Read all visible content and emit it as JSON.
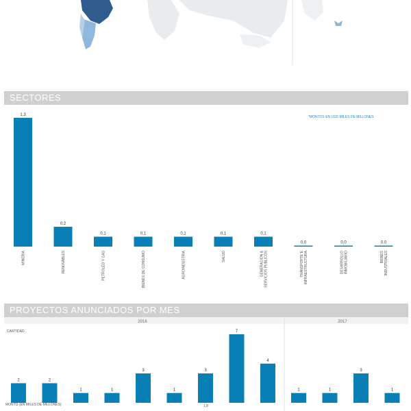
{
  "colors": {
    "bar": "#0a7fb5",
    "header_bg": "#d0d0d0",
    "map_dark": "#2f5c8c",
    "map_light": "#8fb8dc",
    "map_land": "#e8ecef",
    "note": "#1a8cc8"
  },
  "sectores": {
    "header": "SECTORES",
    "note": "*MONTOS EN USD MILES DE MILLONES"
  },
  "proyectos": {
    "header": "PROYECTOS ANUNCIADOS POR MES",
    "cantidad_label": "CANTIDAD",
    "monto_label": "MONTO (EN MILES DE MILLONES)",
    "bottom_value": "1,8"
  },
  "chart_data": [
    {
      "type": "bar",
      "title": "SECTORES",
      "categories": [
        "MINERIA",
        "RENOVABLES",
        "PETROLEO Y GAS",
        "BIENES DE CONSUMO",
        "AGROINDUSTRIA",
        "SALUD",
        "GENERACION & SERVICIOS PUBLICOS",
        "TRANSPORTE E INFRAESTRUCTURA",
        "DESARROLLO INMOBILIARIO",
        "BIENES INDUSTRIALES"
      ],
      "values": [
        1.3,
        0.2,
        0.1,
        0.1,
        0.1,
        0.1,
        0.1,
        0.0,
        0.0,
        0.0
      ],
      "value_labels": [
        "1,3",
        "0,2",
        "0,1",
        "0,1",
        "0,1",
        "0,1",
        "0,1",
        "0,0",
        "0,0",
        "0,0"
      ],
      "ylim": [
        0,
        1.3
      ]
    },
    {
      "type": "bar",
      "title": "PROYECTOS ANUNCIADOS POR MES",
      "ylabel": "CANTIDAD",
      "groups": [
        {
          "year": "2016",
          "values": [
            2,
            2,
            1,
            1,
            3,
            1,
            3,
            7,
            4
          ]
        },
        {
          "year": "2017",
          "values": [
            1,
            1,
            3,
            1
          ]
        }
      ],
      "ylim": [
        0,
        7
      ]
    }
  ]
}
